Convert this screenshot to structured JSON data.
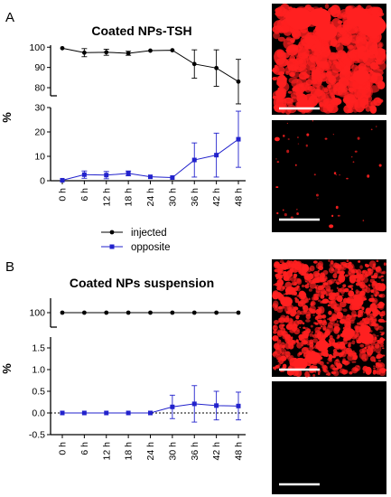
{
  "panel_labels": [
    "A",
    "B"
  ],
  "legend": {
    "injected": "injected",
    "opposite": "opposite"
  },
  "colors": {
    "injected": "#000000",
    "opposite": "#2222cc",
    "micrograph_red": "#ff2020",
    "scale_bar": "#ffffff"
  },
  "chart_data": [
    {
      "type": "line",
      "title": "Coated NPs-TSH",
      "ylabel": "%",
      "broken_y_axis": true,
      "upper_segment": {
        "ylim": [
          76,
          101
        ],
        "ticks": [
          80,
          90,
          100
        ]
      },
      "lower_segment": {
        "ylim": [
          0,
          30
        ],
        "ticks": [
          0,
          10,
          20,
          30
        ]
      },
      "categories": [
        "0 h",
        "6 h",
        "12 h",
        "18 h",
        "24 h",
        "30 h",
        "36 h",
        "42 h",
        "48 h"
      ],
      "series": [
        {
          "name": "injected",
          "values": [
            99.5,
            97.3,
            97.5,
            97.0,
            98.3,
            98.5,
            91.7,
            89.7,
            83.0
          ],
          "error": [
            0,
            2,
            1.5,
            1,
            0,
            0,
            7,
            9,
            11
          ]
        },
        {
          "name": "opposite",
          "values": [
            0.2,
            2.5,
            2.3,
            3.0,
            1.6,
            1.3,
            8.5,
            10.5,
            17.0
          ],
          "error": [
            0,
            1.5,
            1.5,
            1,
            0,
            0,
            7,
            9,
            11.5
          ]
        }
      ],
      "micrographs": [
        "injected",
        "opposite"
      ],
      "legend_position": "bottom-center"
    },
    {
      "type": "line",
      "title": "Coated NPs suspension",
      "ylabel": "%",
      "broken_y_axis": true,
      "upper_segment": {
        "ticks": [
          100
        ]
      },
      "lower_segment": {
        "ylim": [
          -0.5,
          1.75
        ],
        "ticks": [
          -0.5,
          0.0,
          0.5,
          1.0,
          1.5
        ]
      },
      "categories": [
        "0 h",
        "6 h",
        "12 h",
        "18 h",
        "24 h",
        "30 h",
        "36 h",
        "42 h",
        "48 h"
      ],
      "reference_line": 0,
      "series": [
        {
          "name": "injected",
          "values": [
            100,
            100,
            100,
            100,
            100,
            100,
            100,
            100,
            100
          ],
          "error": [
            0,
            0,
            0,
            0,
            0,
            0,
            0,
            0,
            0
          ]
        },
        {
          "name": "opposite",
          "values": [
            0,
            0,
            0,
            0,
            0,
            0.14,
            0.21,
            0.17,
            0.16
          ],
          "error": [
            0,
            0,
            0,
            0,
            0,
            0.27,
            0.42,
            0.33,
            0.32
          ]
        }
      ],
      "micrographs": [
        "injected",
        "opposite"
      ]
    }
  ]
}
